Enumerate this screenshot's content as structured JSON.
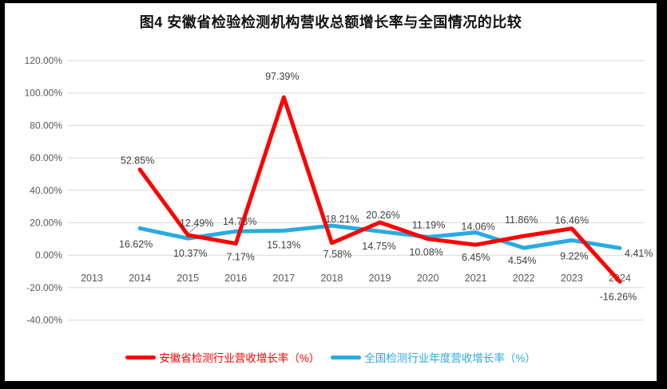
{
  "window": {
    "frame_color": "#000000",
    "background": "#ffffff"
  },
  "chart_data": {
    "type": "line",
    "title": "图4 安徽省检验检测机构营收总额增长率与全国情况的比较",
    "categories": [
      "2013",
      "2014",
      "2015",
      "2016",
      "2017",
      "2018",
      "2019",
      "2020",
      "2021",
      "2022",
      "2023",
      "2024"
    ],
    "series": [
      {
        "name": "安徽省检测行业营收增长率（%）",
        "color": "#FF0000",
        "values": [
          null,
          52.85,
          12.49,
          7.17,
          97.39,
          7.58,
          20.26,
          10.08,
          6.45,
          11.86,
          16.46,
          -16.26
        ],
        "labels": [
          "",
          "52.85%",
          "12.49%",
          "7.17%",
          "97.39%",
          "7.58%",
          "20.26%",
          "10.08%",
          "6.45%",
          "11.86%",
          "16.46%",
          "-16.26%"
        ]
      },
      {
        "name": "全国检测行业年度营收增长率（%）",
        "color": "#29ABE2",
        "values": [
          null,
          16.62,
          10.37,
          14.73,
          15.13,
          18.21,
          14.75,
          11.19,
          14.06,
          4.54,
          9.22,
          4.41
        ],
        "labels": [
          "",
          "16.62%",
          "10.37%",
          "14.73%",
          "15.13%",
          "18.21%",
          "14.75%",
          "11.19%",
          "14.06%",
          "4.54%",
          "9.22%",
          "4.41%"
        ]
      }
    ],
    "ylim": [
      -40,
      120
    ],
    "y_tick_step": 20,
    "y_tick_labels": [
      "120.00%",
      "100.00%",
      "80.00%",
      "60.00%",
      "40.00%",
      "20.00%",
      "0.00%",
      "-20.00%",
      "-40.00%"
    ],
    "grid": "horizontal",
    "legend_position": "bottom",
    "data_labels_visible": true,
    "colors": {
      "gridline": "#D9D9D9",
      "axis_text": "#595959",
      "data_label_text": "#404040",
      "leader_line": "#A6A6A6"
    }
  }
}
